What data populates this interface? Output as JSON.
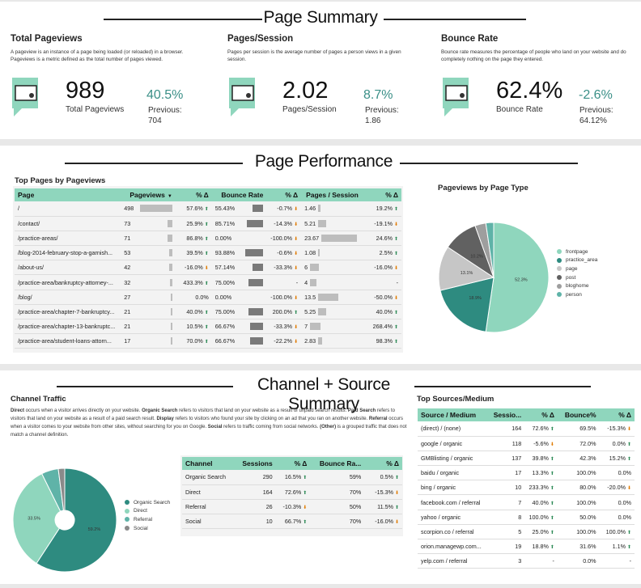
{
  "sections": {
    "page_summary": "Page Summary",
    "page_performance": "Page Performance",
    "channel_source": "Channel + Source Summary"
  },
  "kpis": [
    {
      "title": "Total Pageviews",
      "desc": "A pageview is an instance of a page being loaded (or reloaded) in a browser. Pageviews is a metric defined as the total number of pages viewed.",
      "value": "989",
      "label": "Total Pageviews",
      "change": "40.5%",
      "prev_label": "Previous:",
      "prev_value": "704",
      "icon": "pageview-icon"
    },
    {
      "title": "Pages/Session",
      "desc": "Pages per session is the average number of pages a person views in a given session.",
      "value": "2.02",
      "label": "Pages/Session",
      "change": "8.7%",
      "prev_label": "Previous:",
      "prev_value": "1.86",
      "icon": "pages-session-icon"
    },
    {
      "title": "Bounce Rate",
      "desc": "Bounce rate measures the percentage of people who land on your website and do completely nothing on the page they entered.",
      "value": "62.4%",
      "label": "Bounce Rate",
      "change": "-2.6%",
      "prev_label": "Previous:",
      "prev_value": "64.12%",
      "icon": "bounce-rate-icon"
    }
  ],
  "top_pages": {
    "title": "Top Pages by Pageviews",
    "headers": [
      "Page",
      "Pageviews",
      "% Δ",
      "Bounce Rate",
      "% Δ",
      "Pages / Session",
      "% Δ"
    ],
    "sort_indicator": "▼",
    "rows": [
      {
        "page": "/",
        "pv": "498",
        "pvd": "57.6%",
        "pvdir": "up",
        "br": "55.43%",
        "brd": "-0.7%",
        "brdir": "dn",
        "ps": "1.46",
        "psd": "19.2%",
        "psdir": "up",
        "pvn": 498,
        "brn": 55.43,
        "psn": 1.46
      },
      {
        "page": "/contact/",
        "pv": "73",
        "pvd": "25.9%",
        "pvdir": "up",
        "br": "85.71%",
        "brd": "-14.3%",
        "brdir": "dn",
        "ps": "5.21",
        "psd": "-19.1%",
        "psdir": "dn",
        "pvn": 73,
        "brn": 85.71,
        "psn": 5.21
      },
      {
        "page": "/practice-areas/",
        "pv": "71",
        "pvd": "86.8%",
        "pvdir": "up",
        "br": "0.00%",
        "brd": "-100.0%",
        "brdir": "dn",
        "ps": "23.67",
        "psd": "24.6%",
        "psdir": "up",
        "pvn": 71,
        "brn": 0,
        "psn": 23.67
      },
      {
        "page": "/blog-2014-february-stop-a-garnish...",
        "pv": "53",
        "pvd": "39.5%",
        "pvdir": "up",
        "br": "93.88%",
        "brd": "-0.6%",
        "brdir": "dn",
        "ps": "1.08",
        "psd": "2.5%",
        "psdir": "up",
        "pvn": 53,
        "brn": 93.88,
        "psn": 1.08
      },
      {
        "page": "/about-us/",
        "pv": "42",
        "pvd": "-16.0%",
        "pvdir": "dn",
        "br": "57.14%",
        "brd": "-33.3%",
        "brdir": "dn",
        "ps": "6",
        "psd": "-16.0%",
        "psdir": "dn",
        "pvn": 42,
        "brn": 57.14,
        "psn": 6
      },
      {
        "page": "/practice-area/bankruptcy-attorney-...",
        "pv": "32",
        "pvd": "433.3%",
        "pvdir": "up",
        "br": "75.00%",
        "brd": "-",
        "brdir": "",
        "ps": "4",
        "psd": "-",
        "psdir": "",
        "pvn": 32,
        "brn": 75,
        "psn": 4
      },
      {
        "page": "/blog/",
        "pv": "27",
        "pvd": "0.0%",
        "pvdir": "",
        "br": "0.00%",
        "brd": "-100.0%",
        "brdir": "dn",
        "ps": "13.5",
        "psd": "-50.0%",
        "psdir": "dn",
        "pvn": 27,
        "brn": 0,
        "psn": 13.5
      },
      {
        "page": "/practice-area/chapter-7-bankruptcy...",
        "pv": "21",
        "pvd": "40.0%",
        "pvdir": "up",
        "br": "75.00%",
        "brd": "200.0%",
        "brdir": "up",
        "ps": "5.25",
        "psd": "40.0%",
        "psdir": "up",
        "pvn": 21,
        "brn": 75,
        "psn": 5.25
      },
      {
        "page": "/practice-area/chapter-13-bankruptc...",
        "pv": "21",
        "pvd": "10.5%",
        "pvdir": "up",
        "br": "66.67%",
        "brd": "-33.3%",
        "brdir": "dn",
        "ps": "7",
        "psd": "268.4%",
        "psdir": "up",
        "pvn": 21,
        "brn": 66.67,
        "psn": 7
      },
      {
        "page": "/practice-area/student-loans-attorn...",
        "pv": "17",
        "pvd": "70.0%",
        "pvdir": "up",
        "br": "66.67%",
        "brd": "-22.2%",
        "brdir": "dn",
        "ps": "2.83",
        "psd": "98.3%",
        "psdir": "up",
        "pvn": 17,
        "brn": 66.67,
        "psn": 2.83
      }
    ]
  },
  "page_type_chart": {
    "title": "Pageviews by Page Type",
    "colors": [
      "#8fd6bd",
      "#2e8b80",
      "#c6c6c6",
      "#616161",
      "#9e9e9e",
      "#5fb3a8"
    ],
    "chart_data": {
      "type": "pie",
      "categories": [
        "frontpage",
        "practice_area",
        "page",
        "post",
        "bloghome",
        "person"
      ],
      "values": [
        52.3,
        18.9,
        13.1,
        10.2,
        3.2,
        2.3
      ],
      "data_labels": [
        "52.3%",
        "18.9%",
        "13.1%",
        "10.2%",
        "",
        ""
      ]
    }
  },
  "channel": {
    "title": "Channel Traffic",
    "desc_parts": [
      {
        "b": "Direct"
      },
      {
        "t": " occurs when a visitor arrives directly on your website. "
      },
      {
        "b": "Organic Search"
      },
      {
        "t": " refers to visitors that land on your website as a result of unpaid search results. "
      },
      {
        "b": "Paid Search"
      },
      {
        "t": " refers to visitors that land on your website as a result of a paid search result. "
      },
      {
        "b": "Display"
      },
      {
        "t": " refers to visitors who found your site by clicking on an ad that you ran on another website. "
      },
      {
        "b": "Referral"
      },
      {
        "t": " occurs when a visitor comes to your website from other sites, without searching for you on Google. "
      },
      {
        "b": "Social"
      },
      {
        "t": " refers to traffic coming from social networks. "
      },
      {
        "b": "(Other)"
      },
      {
        "t": " is a grouped traffic that does not match a channel definition."
      }
    ],
    "colors": [
      "#2e8b80",
      "#8fd6bd",
      "#5fb3a8",
      "#8a8a8a"
    ],
    "chart_data": {
      "type": "pie",
      "categories": [
        "Organic Search",
        "Direct",
        "Referral",
        "Social"
      ],
      "values": [
        59.2,
        33.5,
        5.3,
        2.0
      ],
      "data_labels": [
        "59.2%",
        "33.5%",
        "",
        ""
      ]
    },
    "table": {
      "headers": [
        "Channel",
        "Sessions",
        "% Δ",
        "Bounce Ra...",
        "% Δ"
      ],
      "rows": [
        {
          "c": "Organic Search",
          "s": "290",
          "sd": "16.5%",
          "sdir": "up",
          "b": "59%",
          "bd": "0.5%",
          "bdir": "up"
        },
        {
          "c": "Direct",
          "s": "164",
          "sd": "72.6%",
          "sdir": "up",
          "b": "70%",
          "bd": "-15.3%",
          "bdir": "dn"
        },
        {
          "c": "Referral",
          "s": "26",
          "sd": "-10.3%",
          "sdir": "dn",
          "b": "50%",
          "bd": "11.5%",
          "bdir": "up"
        },
        {
          "c": "Social",
          "s": "10",
          "sd": "66.7%",
          "sdir": "up",
          "b": "70%",
          "bd": "-16.0%",
          "bdir": "dn"
        }
      ]
    }
  },
  "sources": {
    "title": "Top Sources/Medium",
    "headers": [
      "Source / Medium",
      "Sessio...",
      "% Δ",
      "Bounce%",
      "% Δ"
    ],
    "rows": [
      {
        "c": "(direct) / (none)",
        "s": "164",
        "sd": "72.6%",
        "sdir": "up",
        "b": "69.5%",
        "bd": "-15.3%",
        "bdir": "dn"
      },
      {
        "c": "google / organic",
        "s": "118",
        "sd": "-5.6%",
        "sdir": "dn",
        "b": "72.0%",
        "bd": "0.0%",
        "bdir": "up"
      },
      {
        "c": "GMBlisting / organic",
        "s": "137",
        "sd": "39.8%",
        "sdir": "up",
        "b": "42.3%",
        "bd": "15.2%",
        "bdir": "up"
      },
      {
        "c": "baidu / organic",
        "s": "17",
        "sd": "13.3%",
        "sdir": "up",
        "b": "100.0%",
        "bd": "0.0%",
        "bdir": ""
      },
      {
        "c": "bing / organic",
        "s": "10",
        "sd": "233.3%",
        "sdir": "up",
        "b": "80.0%",
        "bd": "-20.0%",
        "bdir": "dn"
      },
      {
        "c": "facebook.com / referral",
        "s": "7",
        "sd": "40.0%",
        "sdir": "up",
        "b": "100.0%",
        "bd": "0.0%",
        "bdir": ""
      },
      {
        "c": "yahoo / organic",
        "s": "8",
        "sd": "100.0%",
        "sdir": "up",
        "b": "50.0%",
        "bd": "0.0%",
        "bdir": ""
      },
      {
        "c": "scorpion.co / referral",
        "s": "5",
        "sd": "25.0%",
        "sdir": "up",
        "b": "100.0%",
        "bd": "100.0%",
        "bdir": "up"
      },
      {
        "c": "orion.managewp.com...",
        "s": "19",
        "sd": "18.8%",
        "sdir": "up",
        "b": "31.6%",
        "bd": "1.1%",
        "bdir": "up"
      },
      {
        "c": "yelp.com / referral",
        "s": "3",
        "sd": "-",
        "sdir": "",
        "b": "0.0%",
        "bd": "-",
        "bdir": ""
      }
    ]
  }
}
